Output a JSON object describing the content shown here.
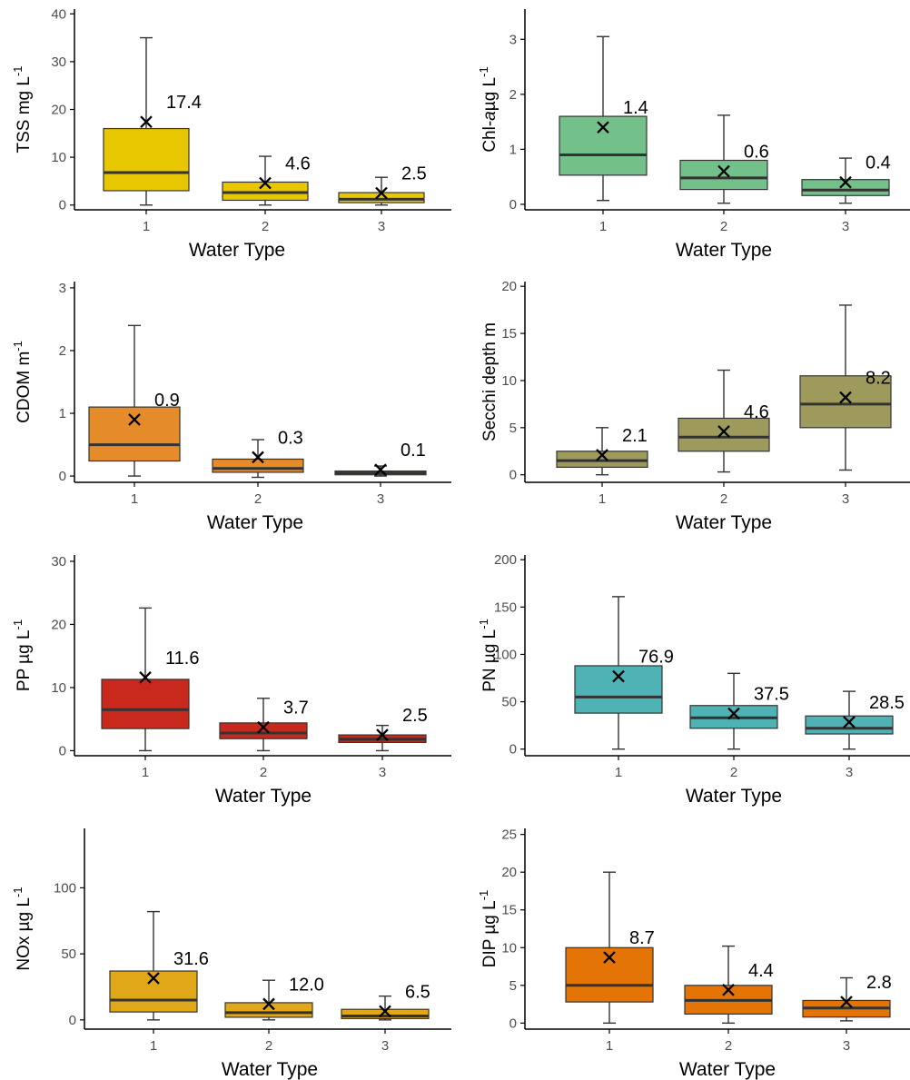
{
  "chart_data": [
    {
      "type": "box",
      "ylabel": "TSS mg L",
      "ylabel_sup": "-1",
      "ylabel_italic": "",
      "xlabel": "Water Type",
      "categories": [
        "1",
        "2",
        "3"
      ],
      "yticks": [
        0,
        10,
        20,
        30,
        40
      ],
      "ylim": [
        -1,
        41
      ],
      "fill": "#E6C700",
      "boxes": [
        {
          "whisker_low": 0,
          "q1": 3,
          "median": 6.8,
          "q3": 16,
          "whisker_high": 35,
          "mean": 17.4,
          "mean_label": "17.4"
        },
        {
          "whisker_low": 0,
          "q1": 1,
          "median": 2.6,
          "q3": 4.8,
          "whisker_high": 10.2,
          "mean": 4.6,
          "mean_label": "4.6"
        },
        {
          "whisker_low": 0,
          "q1": 0.5,
          "median": 1.2,
          "q3": 2.6,
          "whisker_high": 5.8,
          "mean": 2.5,
          "mean_label": "2.5"
        }
      ]
    },
    {
      "type": "box",
      "ylabel": "Chl-",
      "ylabel_sup": "-1",
      "ylabel_italic": "a",
      "ylabel_after": "µg L",
      "xlabel": "Water Type",
      "categories": [
        "1",
        "2",
        "3"
      ],
      "yticks": [
        0,
        1,
        2,
        3
      ],
      "ylim": [
        -0.1,
        3.55
      ],
      "fill": "#74C08A",
      "boxes": [
        {
          "whisker_low": 0.07,
          "q1": 0.53,
          "median": 0.9,
          "q3": 1.6,
          "whisker_high": 3.05,
          "mean": 1.4,
          "mean_label": "1.4"
        },
        {
          "whisker_low": 0.02,
          "q1": 0.27,
          "median": 0.48,
          "q3": 0.8,
          "whisker_high": 1.62,
          "mean": 0.6,
          "mean_label": "0.6"
        },
        {
          "whisker_low": 0.02,
          "q1": 0.16,
          "median": 0.26,
          "q3": 0.45,
          "whisker_high": 0.84,
          "mean": 0.4,
          "mean_label": "0.4"
        }
      ]
    },
    {
      "type": "box",
      "ylabel": "CDOM m",
      "ylabel_sup": "-1",
      "ylabel_italic": "",
      "xlabel": "Water Type",
      "categories": [
        "1",
        "2",
        "3"
      ],
      "yticks": [
        0,
        1,
        2,
        3
      ],
      "ylim": [
        -0.1,
        3.1
      ],
      "fill": "#E68B2A",
      "boxes": [
        {
          "whisker_low": 0,
          "q1": 0.24,
          "median": 0.5,
          "q3": 1.1,
          "whisker_high": 2.4,
          "mean": 0.9,
          "mean_label": "0.9"
        },
        {
          "whisker_low": -0.02,
          "q1": 0.06,
          "median": 0.12,
          "q3": 0.27,
          "whisker_high": 0.58,
          "mean": 0.3,
          "mean_label": "0.3"
        },
        {
          "whisker_low": 0,
          "q1": 0.02,
          "median": 0.05,
          "q3": 0.08,
          "whisker_high": 0.16,
          "mean": 0.1,
          "mean_label": "0.1"
        }
      ]
    },
    {
      "type": "box",
      "ylabel": "Secchi depth m",
      "ylabel_sup": "",
      "ylabel_italic": "",
      "xlabel": "Water Type",
      "categories": [
        "1",
        "2",
        "3"
      ],
      "yticks": [
        0,
        5,
        10,
        15,
        20
      ],
      "ylim": [
        -0.8,
        20.5
      ],
      "fill": "#9E9A5B",
      "boxes": [
        {
          "whisker_low": 0,
          "q1": 0.8,
          "median": 1.5,
          "q3": 2.5,
          "whisker_high": 5,
          "mean": 2.1,
          "mean_label": "2.1"
        },
        {
          "whisker_low": 0.3,
          "q1": 2.5,
          "median": 4,
          "q3": 6,
          "whisker_high": 11.1,
          "mean": 4.6,
          "mean_label": "4.6"
        },
        {
          "whisker_low": 0.5,
          "q1": 5,
          "median": 7.5,
          "q3": 10.5,
          "whisker_high": 18,
          "mean": 8.2,
          "mean_label": "8.2"
        }
      ]
    },
    {
      "type": "box",
      "ylabel": "PP µg L",
      "ylabel_sup": "-1",
      "ylabel_italic": "",
      "xlabel": "Water Type",
      "categories": [
        "1",
        "2",
        "3"
      ],
      "yticks": [
        0,
        10,
        20,
        30
      ],
      "ylim": [
        -0.8,
        31
      ],
      "fill": "#C8291C",
      "boxes": [
        {
          "whisker_low": 0,
          "q1": 3.5,
          "median": 6.5,
          "q3": 11.3,
          "whisker_high": 22.6,
          "mean": 11.6,
          "mean_label": "11.6"
        },
        {
          "whisker_low": 0,
          "q1": 1.9,
          "median": 2.8,
          "q3": 4.4,
          "whisker_high": 8.3,
          "mean": 3.7,
          "mean_label": "3.7"
        },
        {
          "whisker_low": 0,
          "q1": 1.3,
          "median": 1.8,
          "q3": 2.5,
          "whisker_high": 4,
          "mean": 2.5,
          "mean_label": "2.5"
        }
      ]
    },
    {
      "type": "box",
      "ylabel": "PN µg L",
      "ylabel_sup": "-1",
      "ylabel_italic": "",
      "xlabel": "Water Type",
      "categories": [
        "1",
        "2",
        "3"
      ],
      "yticks": [
        0,
        50,
        100,
        150,
        200
      ],
      "ylim": [
        -7,
        205
      ],
      "fill": "#4FB3B5",
      "boxes": [
        {
          "whisker_low": 0,
          "q1": 38,
          "median": 55,
          "q3": 88,
          "whisker_high": 161,
          "mean": 76.9,
          "mean_label": "76.9"
        },
        {
          "whisker_low": 0,
          "q1": 22,
          "median": 33,
          "q3": 46,
          "whisker_high": 80,
          "mean": 37.5,
          "mean_label": "37.5"
        },
        {
          "whisker_low": 0,
          "q1": 16,
          "median": 22,
          "q3": 35,
          "whisker_high": 61,
          "mean": 28.5,
          "mean_label": "28.5"
        }
      ]
    },
    {
      "type": "box",
      "ylabel": "NOx µg L",
      "ylabel_sup": "-1",
      "ylabel_italic": "",
      "xlabel": "Water Type",
      "categories": [
        "1",
        "2",
        "3"
      ],
      "yticks": [
        0,
        50,
        100
      ],
      "ylim": [
        -7,
        145
      ],
      "fill": "#E0A818",
      "boxes": [
        {
          "whisker_low": 0,
          "q1": 6,
          "median": 15,
          "q3": 37,
          "whisker_high": 82,
          "mean": 31.6,
          "mean_label": "31.6"
        },
        {
          "whisker_low": 0,
          "q1": 2,
          "median": 5.5,
          "q3": 13,
          "whisker_high": 30,
          "mean": 12.0,
          "mean_label": "12.0"
        },
        {
          "whisker_low": 0,
          "q1": 1,
          "median": 3,
          "q3": 8,
          "whisker_high": 18,
          "mean": 6.5,
          "mean_label": "6.5"
        }
      ]
    },
    {
      "type": "box",
      "ylabel": "DIP µg L",
      "ylabel_sup": "-1",
      "ylabel_italic": "",
      "xlabel": "Water Type",
      "categories": [
        "1",
        "2",
        "3"
      ],
      "yticks": [
        0,
        5,
        10,
        15,
        20,
        25
      ],
      "ylim": [
        -0.8,
        25.8
      ],
      "fill": "#E37405",
      "boxes": [
        {
          "whisker_low": 0,
          "q1": 2.8,
          "median": 5,
          "q3": 10,
          "whisker_high": 20,
          "mean": 8.7,
          "mean_label": "8.7"
        },
        {
          "whisker_low": 0,
          "q1": 1.2,
          "median": 3,
          "q3": 5,
          "whisker_high": 10.2,
          "mean": 4.4,
          "mean_label": "4.4"
        },
        {
          "whisker_low": 0.3,
          "q1": 0.8,
          "median": 2,
          "q3": 3,
          "whisker_high": 6,
          "mean": 2.8,
          "mean_label": "2.8"
        }
      ]
    }
  ],
  "colors": {
    "axis": "#000000",
    "tick_text": "#4d4d4d",
    "box_outline": "#333333",
    "median_line": "#333333"
  }
}
